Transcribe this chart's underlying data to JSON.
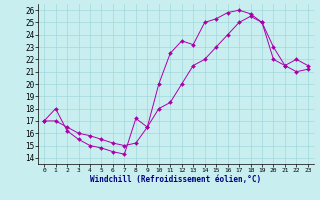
{
  "xlabel": "Windchill (Refroidissement éolien,°C)",
  "xlim": [
    -0.5,
    23.5
  ],
  "ylim": [
    13.5,
    26.5
  ],
  "xticks": [
    0,
    1,
    2,
    3,
    4,
    5,
    6,
    7,
    8,
    9,
    10,
    11,
    12,
    13,
    14,
    15,
    16,
    17,
    18,
    19,
    20,
    21,
    22,
    23
  ],
  "yticks": [
    14,
    15,
    16,
    17,
    18,
    19,
    20,
    21,
    22,
    23,
    24,
    25,
    26
  ],
  "bg_color": "#c8eef0",
  "line_color": "#aa00aa",
  "grid_color": "#a0d8dc",
  "line1": {
    "x": [
      0,
      1,
      2,
      3,
      4,
      5,
      6,
      7,
      8,
      9,
      10,
      11,
      12,
      13,
      14,
      15,
      16,
      17,
      18,
      19,
      20,
      21,
      22,
      23
    ],
    "y": [
      17.0,
      18.0,
      16.2,
      15.5,
      15.0,
      14.8,
      14.5,
      14.3,
      17.2,
      16.5,
      20.0,
      22.5,
      23.5,
      23.2,
      25.0,
      25.3,
      25.8,
      26.0,
      25.7,
      25.0,
      22.0,
      21.5,
      22.0,
      21.5
    ]
  },
  "line2": {
    "x": [
      0,
      1,
      2,
      3,
      4,
      5,
      6,
      7,
      8,
      9,
      10,
      11,
      12,
      13,
      14,
      15,
      16,
      17,
      18,
      19,
      20,
      21,
      22,
      23
    ],
    "y": [
      17.0,
      17.0,
      16.5,
      16.0,
      15.8,
      15.5,
      15.2,
      15.0,
      15.2,
      16.5,
      18.0,
      18.5,
      20.0,
      21.5,
      22.0,
      23.0,
      24.0,
      25.0,
      25.5,
      25.0,
      23.0,
      21.5,
      21.0,
      21.2
    ]
  }
}
